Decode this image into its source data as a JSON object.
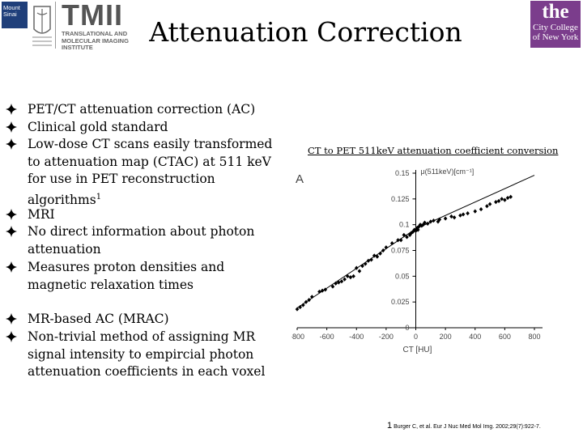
{
  "header": {
    "title": "Attenuation Correction",
    "mount_sinai_logo": "Mount Sinai",
    "tmii_logo": {
      "big": "TMII",
      "line1": "TRANSLATIONAL AND",
      "line2": "MOLECULAR IMAGING",
      "line3": "INSTITUTE"
    },
    "ccny_logo": {
      "the": "the",
      "line1": "City College",
      "line2": "of New York"
    }
  },
  "bullets": [
    "PET/CT attenuation correction (AC)",
    "Clinical gold standard",
    "Low-dose CT scans easily transformed to attenuation map (CTAC) at 511 keV for use in PET reconstruction algorithms",
    "MRI",
    "No direct information about photon attenuation",
    "Measures proton densities and magnetic relaxation times",
    "MR-based AC (MRAC)",
    "Non-trivial method of assigning MR signal intensity to empircial photon attenuation coefficients in each voxel"
  ],
  "bullet_superscript": "1",
  "chart_caption": "CT to PET 511keV attenuation coefficient conversion",
  "footnote": {
    "number": "1",
    "text": "Burger C, et al. Eur J Nuc Med Mol Img. 2002;29(7):922-7."
  },
  "chart_data": {
    "type": "scatter",
    "panel_label": "A",
    "ylabel": "μ(511keV)[cm⁻¹]",
    "xlabel": "CT [HU]",
    "xlim": [
      -800,
      800
    ],
    "ylim": [
      0,
      0.15
    ],
    "x_ticks": [
      -800,
      -600,
      -400,
      -200,
      0,
      200,
      400,
      600,
      800
    ],
    "y_ticks": [
      0,
      0.025,
      0.05,
      0.075,
      0.1,
      0.125,
      0.15
    ],
    "grid": false,
    "fit_lines": [
      {
        "x": [
          -1000,
          0
        ],
        "y": [
          0,
          0.096
        ]
      },
      {
        "x": [
          0,
          1000
        ],
        "y": [
          0.096,
          0.161
        ]
      }
    ],
    "points": {
      "x": [
        -800,
        -780,
        -760,
        -740,
        -720,
        -700,
        -650,
        -630,
        -610,
        -560,
        -540,
        -520,
        -500,
        -480,
        -460,
        -440,
        -420,
        -400,
        -380,
        -360,
        -340,
        -320,
        -300,
        -280,
        -260,
        -240,
        -220,
        -200,
        -160,
        -120,
        -100,
        -80,
        -60,
        -40,
        -30,
        -20,
        -10,
        0,
        5,
        10,
        15,
        20,
        30,
        40,
        50,
        60,
        80,
        100,
        120,
        150,
        160,
        200,
        240,
        260,
        300,
        320,
        350,
        400,
        440,
        480,
        500,
        540,
        560,
        580,
        600,
        620,
        640
      ],
      "y": [
        0.018,
        0.02,
        0.022,
        0.025,
        0.027,
        0.03,
        0.035,
        0.036,
        0.037,
        0.04,
        0.043,
        0.044,
        0.045,
        0.047,
        0.05,
        0.049,
        0.05,
        0.058,
        0.055,
        0.06,
        0.062,
        0.065,
        0.066,
        0.07,
        0.069,
        0.072,
        0.075,
        0.078,
        0.082,
        0.085,
        0.085,
        0.09,
        0.088,
        0.09,
        0.092,
        0.093,
        0.095,
        0.094,
        0.096,
        0.097,
        0.095,
        0.098,
        0.1,
        0.099,
        0.1,
        0.102,
        0.101,
        0.103,
        0.104,
        0.103,
        0.105,
        0.106,
        0.108,
        0.107,
        0.109,
        0.11,
        0.111,
        0.113,
        0.115,
        0.118,
        0.12,
        0.122,
        0.123,
        0.125,
        0.124,
        0.126,
        0.127
      ]
    }
  }
}
